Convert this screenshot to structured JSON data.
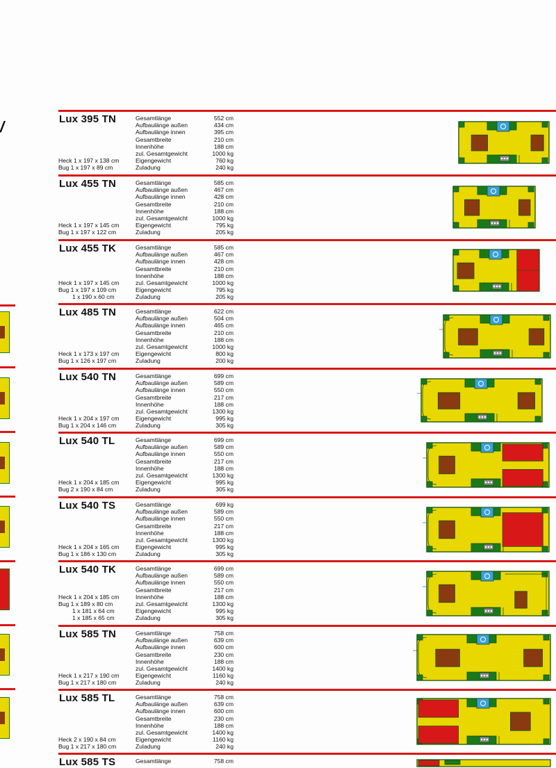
{
  "brand_fragment": "/",
  "field_labels": [
    "Gesamtlänge",
    "Aufbaulänge außen",
    "Aufbaulänge innen",
    "Gesamtbreite",
    "Innenhöhe",
    "zul. Gesamtgewicht",
    "Eigengewicht",
    "Zuladung"
  ],
  "models": [
    {
      "name": "Lux 395 TN",
      "values": [
        "552 cm",
        "434 cm",
        "395 cm",
        "210 cm",
        "188 cm",
        "1000 kg",
        "760 kg",
        "240 kg"
      ],
      "beds": [
        "Heck 1 x 197 x 138 cm",
        "Bug 1 x 197 x 89 cm"
      ]
    },
    {
      "name": "Lux 455 TN",
      "values": [
        "585 cm",
        "467 cm",
        "428 cm",
        "210 cm",
        "188 cm",
        "1000 kg",
        "795 kg",
        "205 kg"
      ],
      "beds": [
        "Heck 1 x 197 x 145 cm",
        "Bug 1 x 197 x 122 cm"
      ]
    },
    {
      "name": "Lux 455 TK",
      "values": [
        "585 cm",
        "467 cm",
        "428 cm",
        "210 cm",
        "188 cm",
        "1000 kg",
        "795 kg",
        "205 kg"
      ],
      "beds": [
        "Heck 1 x 197 x 145 cm",
        "Bug 1 x 197 x 109 cm",
        "1 x 190 x  60 cm"
      ]
    },
    {
      "name": "Lux 485 TN",
      "values": [
        "622 cm",
        "504 cm",
        "465 cm",
        "210 cm",
        "188 cm",
        "1000 kg",
        "800 kg",
        "200 kg"
      ],
      "beds": [
        "Heck 1 x 173 x 197 cm",
        "Bug 1 x 126 x 197 cm"
      ]
    },
    {
      "name": "Lux 540 TN",
      "values": [
        "699 cm",
        "589 cm",
        "550 cm",
        "217 cm",
        "188 cm",
        "1300 kg",
        "995 kg",
        "305 kg"
      ],
      "beds": [
        "Heck 1 x 204 x 197 cm",
        "Bug 1 x 204 x 146 cm"
      ]
    },
    {
      "name": "Lux 540 TL",
      "values": [
        "699 cm",
        "589 cm",
        "550 cm",
        "217 cm",
        "188 cm",
        "1300 kg",
        "995 kg",
        "305 kg"
      ],
      "beds": [
        "Heck 1 x 204 x 185 cm",
        "Bug 2 x 190 x 84 cm"
      ]
    },
    {
      "name": "Lux 540 TS",
      "values": [
        "699 kg",
        "589 cm",
        "550 cm",
        "217 cm",
        "188 cm",
        "1300 kg",
        "995 kg",
        "305 kg"
      ],
      "beds": [
        "Heck 1 x 204 x 165 cm",
        "Bug 1 x 186 x 130 cm"
      ]
    },
    {
      "name": "Lux 540 TK",
      "values": [
        "699 cm",
        "589 cm",
        "550 cm",
        "217 cm",
        "188 cm",
        "1300 kg",
        "995 kg",
        "305 kg"
      ],
      "beds": [
        "Heck 1 x 204 x 185 cm",
        "Bug 1 x 189 x 80 cm",
        "1 x 181 x 64 cm",
        "1 x 185 x 65 cm"
      ]
    },
    {
      "name": "Lux 585 TN",
      "values": [
        "758 cm",
        "639 cm",
        "600 cm",
        "230 cm",
        "188 cm",
        "1400 kg",
        "1160 kg",
        "240 kg"
      ],
      "beds": [
        "Heck 1 x 217 x 190 cm",
        "Bug 1 x 217 x 180 cm"
      ]
    },
    {
      "name": "Lux 585 TL",
      "values": [
        "758 cm",
        "639 cm",
        "600 cm",
        "230 cm",
        "188 cm",
        "1400 kg",
        "1160 kg",
        "240 kg"
      ],
      "beds": [
        "Heck 2 x 190 x 84 cm",
        "Bug 1 x 217 x 180 cm"
      ]
    },
    {
      "name": "Lux 585 TS",
      "values": [
        "758 cm"
      ],
      "beds": []
    }
  ],
  "colors": {
    "rule": "#d81818",
    "seat": "#e8d800",
    "table": "#8a3a10",
    "cabinet": "#1a7a1a",
    "sink": "#3aa0d8",
    "bed_red": "#d81818",
    "stove": "#8a8a8a"
  }
}
